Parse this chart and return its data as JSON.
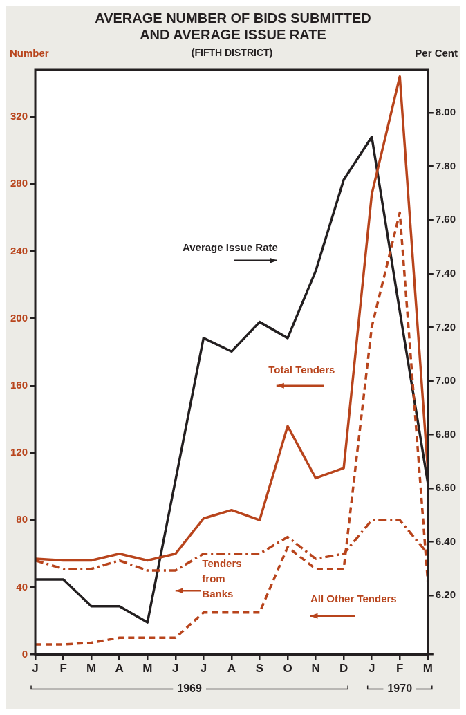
{
  "chart_data": {
    "type": "line",
    "title": "AVERAGE NUMBER OF BIDS SUBMITTED\nAND AVERAGE ISSUE RATE",
    "subtitle": "(FIFTH DISTRICT)",
    "ylabel": "Number",
    "y2label": "Per Cent",
    "categories": [
      "J",
      "F",
      "M",
      "A",
      "M",
      "J",
      "J",
      "A",
      "S",
      "O",
      "N",
      "D",
      "J",
      "F",
      "M"
    ],
    "series": [
      {
        "name": "Total Tenders",
        "color": "#b8441c",
        "line_style": "solid",
        "values": [
          57,
          56,
          56,
          60,
          56,
          60,
          81,
          86,
          80,
          136,
          105,
          111,
          274,
          344,
          110
        ]
      },
      {
        "name": "Tenders from Banks",
        "color": "#b8441c",
        "line_style": "dashdot",
        "values": [
          56,
          51,
          51,
          56,
          50,
          50,
          60,
          60,
          60,
          70,
          57,
          60,
          80,
          80,
          60
        ]
      },
      {
        "name": "All Other Tenders",
        "color": "#b8441c",
        "line_style": "dashed",
        "values": [
          6,
          6,
          7,
          10,
          10,
          10,
          25,
          25,
          25,
          64,
          51,
          51,
          195,
          263,
          43
        ]
      },
      {
        "name": "Average Issue Rate",
        "color": "#231f20",
        "line_style": "solid",
        "axis": "y2",
        "values": [
          6.26,
          6.26,
          6.16,
          6.16,
          6.1,
          6.63,
          7.16,
          7.11,
          7.22,
          7.16,
          7.41,
          7.75,
          7.91,
          7.26,
          6.62
        ]
      }
    ],
    "ylim": [
      0,
      348
    ],
    "yticks": [
      0,
      40,
      80,
      120,
      160,
      200,
      240,
      280,
      320
    ],
    "y2lim": [
      5.98,
      8.16
    ],
    "y2ticks": [
      {
        "value": 5.98,
        "label": null
      },
      {
        "value": 6.2,
        "label": "6.20"
      },
      {
        "value": 6.4,
        "label": "6.40"
      },
      {
        "value": 6.6,
        "label": "6.60"
      },
      {
        "value": 6.8,
        "label": "6.80"
      },
      {
        "value": 7.0,
        "label": "7.00"
      },
      {
        "value": 7.2,
        "label": "7.20"
      },
      {
        "value": 7.4,
        "label": "7.40"
      },
      {
        "value": 7.6,
        "label": "7.60"
      },
      {
        "value": 7.8,
        "label": "7.80"
      },
      {
        "value": 8.0,
        "label": "8.00"
      }
    ],
    "annotations": [
      "1969",
      "1970"
    ],
    "legend": false,
    "grid": false,
    "marker": "none"
  }
}
